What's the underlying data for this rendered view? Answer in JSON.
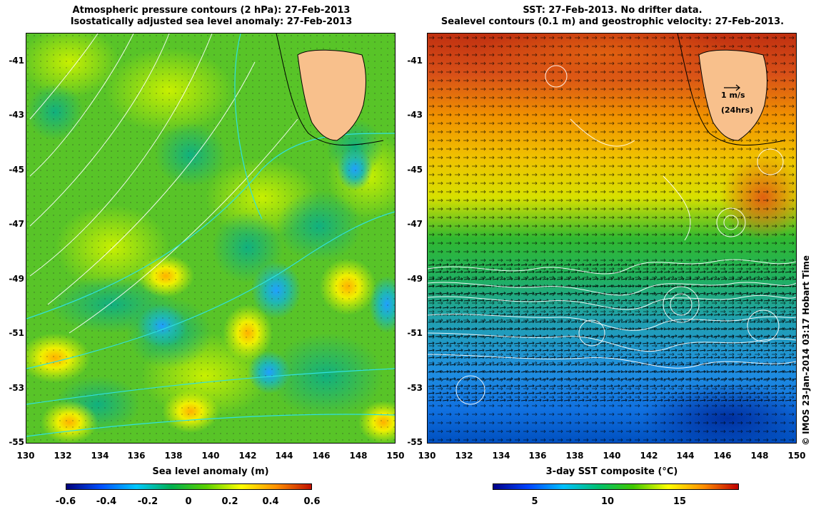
{
  "left_panel": {
    "title_line1": "Atmospheric pressure contours (2 hPa): 27-Feb-2013",
    "title_line2": "Isostatically adjusted sea level anomaly: 27-Feb-2013",
    "colorbar_label": "Sea level anomaly (m)",
    "colorbar_ticks": [
      "-0.6",
      "-0.4",
      "-0.2",
      "0",
      "0.2",
      "0.4",
      "0.6"
    ],
    "colorbar_colors": [
      "#00007a",
      "#0050ff",
      "#00c8ff",
      "#00b050",
      "#5ad000",
      "#ffff00",
      "#ff9000",
      "#c01000"
    ]
  },
  "right_panel": {
    "title_line1": "SST: 27-Feb-2013. No drifter data.",
    "title_line2": "Sealevel contours (0.1 m) and geostrophic velocity: 27-Feb-2013.",
    "colorbar_label": "3-day SST composite (°C)",
    "colorbar_ticks": [
      "5",
      "10",
      "15"
    ],
    "colorbar_colors": [
      "#000088",
      "#0044ff",
      "#00c0ff",
      "#00c070",
      "#40c800",
      "#ffff00",
      "#ff9000",
      "#c00000"
    ],
    "velocity_scale_label": "1 m/s",
    "velocity_scale_sublabel": "(24hrs)"
  },
  "axes": {
    "x_ticks": [
      "130",
      "132",
      "134",
      "136",
      "138",
      "140",
      "142",
      "144",
      "146",
      "148",
      "150"
    ],
    "y_ticks": [
      "-41",
      "-43",
      "-45",
      "-47",
      "-49",
      "-51",
      "-53",
      "-55"
    ]
  },
  "credit": "© IMOS 23-Jan-2014 03:17 Hobart Time",
  "colors": {
    "land": "#f8c08c",
    "sst_warm": "#c03010",
    "sst_mid": "#f0c000",
    "sst_cool": "#2090e0",
    "sla_base": "#50c020"
  }
}
